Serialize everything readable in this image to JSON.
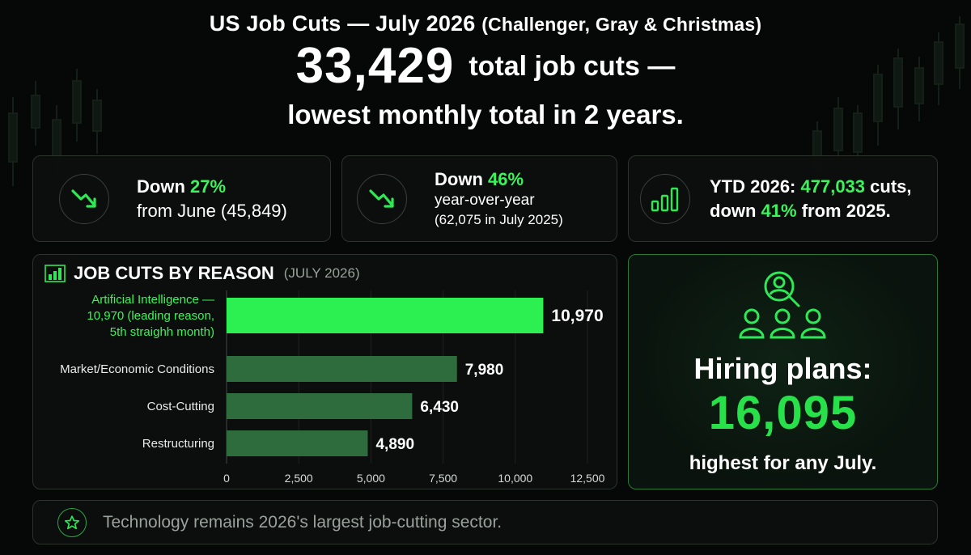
{
  "header": {
    "title": "US Job Cuts — July 2026",
    "source": "(Challenger, Gray & Christmas)",
    "total_value": "33,429",
    "total_suffix": "total job cuts —",
    "subline": "lowest monthly total in 2 years."
  },
  "stats": [
    {
      "icon": "trend-down-icon",
      "prefix": "Down ",
      "highlight": "27%",
      "line2": "from June (45,849)"
    },
    {
      "icon": "trend-down-icon",
      "prefix": "Down ",
      "highlight": "46%",
      "line2": "year-over-year",
      "line3": "(62,075 in July 2025)"
    },
    {
      "icon": "bar-chart-icon",
      "prefix": "YTD 2026: ",
      "highlight": "477,033",
      "suffix": " cuts,",
      "line2_prefix": "down ",
      "line2_highlight": "41%",
      "line2_suffix": " from 2025."
    }
  ],
  "chart_data": {
    "type": "bar",
    "orientation": "horizontal",
    "title": "JOB CUTS BY REASON",
    "subtitle": "(JULY 2026)",
    "categories": [
      "Artificial Intelligence",
      "Market/Economic Conditions",
      "Cost-Cutting",
      "Restructuring"
    ],
    "category_labels": [
      [
        "Artificial Intelligence —",
        "10,970 (leading reason,",
        "5th straighh month)"
      ],
      [
        "Market/Economic Conditions"
      ],
      [
        "Cost-Cutting"
      ],
      [
        "Restructuring"
      ]
    ],
    "values": [
      10970,
      7980,
      6430,
      4890
    ],
    "value_labels": [
      "10,970",
      "7,980",
      "6,430",
      "4,890"
    ],
    "xlim": [
      0,
      12500
    ],
    "xticks": [
      0,
      2500,
      5000,
      7500,
      10000,
      12500
    ],
    "xtick_labels": [
      "0",
      "2,500",
      "5,000",
      "7,500",
      "10,000",
      "12,500"
    ],
    "grid": true,
    "highlight_color": "#2cf052",
    "bar_color": "#2e6b3d",
    "highlight_label_color": "#3bf35a"
  },
  "hiring": {
    "icon": "hiring-people-icon",
    "label": "Hiring plans:",
    "value": "16,095",
    "note": "highest for any July."
  },
  "footer": {
    "icon": "star-icon",
    "text": "Technology remains 2026's largest job-cutting sector."
  },
  "colors": {
    "accent": "#3bf35a",
    "background": "#060807",
    "card_border": "#2c322e"
  }
}
